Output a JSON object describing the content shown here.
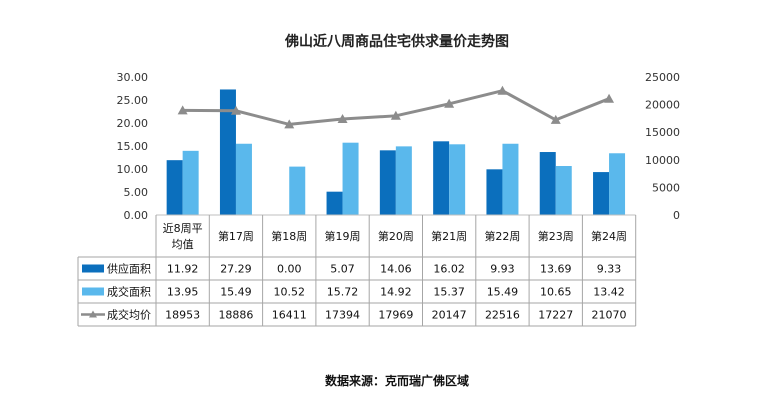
{
  "chart_data": {
    "type": "bar",
    "title": "佛山近八周商品住宅供求量价走势图",
    "categories": [
      "近8周平均值",
      "第17周",
      "第18周",
      "第19周",
      "第20周",
      "第21周",
      "第22周",
      "第23周",
      "第24周"
    ],
    "series": [
      {
        "name": "供应面积",
        "type": "bar",
        "axis": "left",
        "color": "#0b6fbd",
        "values": [
          11.92,
          27.29,
          0.0,
          5.07,
          14.06,
          16.02,
          9.93,
          13.69,
          9.33
        ],
        "labels": [
          "11.92",
          "27.29",
          "0.00",
          "5.07",
          "14.06",
          "16.02",
          "9.93",
          "13.69",
          "9.33"
        ]
      },
      {
        "name": "成交面积",
        "type": "bar",
        "axis": "left",
        "color": "#5ab8ec",
        "values": [
          13.95,
          15.49,
          10.52,
          15.72,
          14.92,
          15.37,
          15.49,
          10.65,
          13.42
        ],
        "labels": [
          "13.95",
          "15.49",
          "10.52",
          "15.72",
          "14.92",
          "15.37",
          "15.49",
          "10.65",
          "13.42"
        ]
      },
      {
        "name": "成交均价",
        "type": "line",
        "axis": "right",
        "color": "#8c8c8c",
        "values": [
          18953,
          18886,
          16411,
          17394,
          17969,
          20147,
          22516,
          17227,
          21070
        ],
        "labels": [
          "18953",
          "18886",
          "16411",
          "17394",
          "17969",
          "20147",
          "22516",
          "17227",
          "21070"
        ]
      }
    ],
    "y_left": {
      "ylim": [
        0,
        30
      ],
      "ticks": [
        "0.00",
        "5.00",
        "10.00",
        "15.00",
        "20.00",
        "25.00",
        "30.00"
      ]
    },
    "y_right": {
      "ylim": [
        0,
        25000
      ],
      "ticks": [
        "0",
        "5000",
        "10000",
        "15000",
        "20000",
        "25000"
      ]
    },
    "legend": "data-table",
    "grid": false
  },
  "source": "数据来源：克而瑞广佛区域"
}
